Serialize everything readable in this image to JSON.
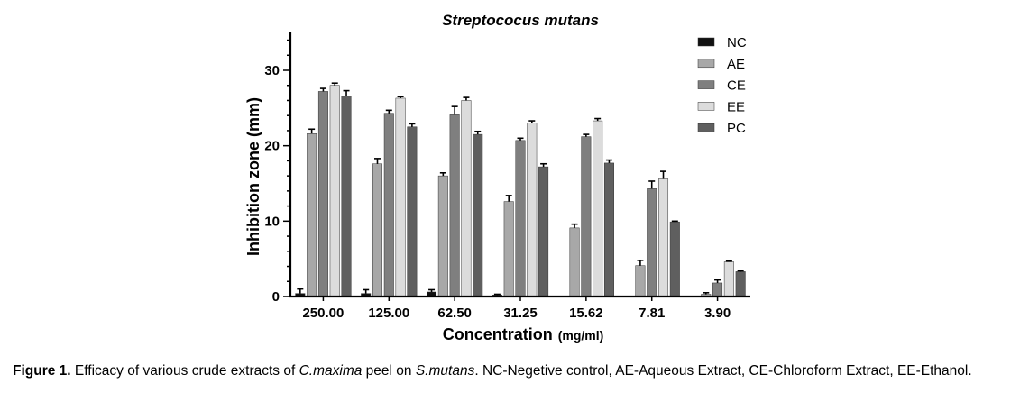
{
  "chart_data": {
    "type": "bar",
    "title": "Streptococus mutans",
    "xlabel": "Concentration",
    "xlabel_unit": "(mg/ml)",
    "ylabel": "Inhibition zone (mm)",
    "ylim": [
      0,
      35
    ],
    "yticks": [
      0,
      10,
      20,
      30
    ],
    "categories": [
      "250.00",
      "125.00",
      "62.50",
      "31.25",
      "15.62",
      "7.81",
      "3.90"
    ],
    "legend_position": "top-right",
    "series": [
      {
        "name": "NC",
        "color": "#111111",
        "values": [
          0.4,
          0.4,
          0.6,
          0.2,
          0.0,
          0.0,
          0.0
        ],
        "errors": [
          0.6,
          0.5,
          0.3,
          0.1,
          0,
          0,
          0
        ]
      },
      {
        "name": "AE",
        "color": "#a8a8a8",
        "values": [
          21.6,
          17.6,
          16.0,
          12.6,
          9.1,
          4.1,
          0.3
        ],
        "errors": [
          0.6,
          0.7,
          0.4,
          0.8,
          0.5,
          0.7,
          0.2
        ]
      },
      {
        "name": "CE",
        "color": "#7f7f7f",
        "values": [
          27.2,
          24.3,
          24.1,
          20.7,
          21.2,
          14.3,
          1.8
        ],
        "errors": [
          0.4,
          0.4,
          1.1,
          0.3,
          0.3,
          1.0,
          0.4
        ]
      },
      {
        "name": "EE",
        "color": "#dcdcdc",
        "values": [
          28.0,
          26.3,
          26.0,
          23.0,
          23.3,
          15.6,
          4.6
        ],
        "errors": [
          0.3,
          0.2,
          0.4,
          0.3,
          0.3,
          1.0,
          0.1
        ]
      },
      {
        "name": "PC",
        "color": "#5f5f5f",
        "values": [
          26.6,
          22.5,
          21.5,
          17.2,
          17.7,
          9.9,
          3.3
        ],
        "errors": [
          0.7,
          0.4,
          0.4,
          0.4,
          0.4,
          0.1,
          0.1
        ]
      }
    ]
  },
  "caption": {
    "label": "Figure 1.",
    "text_1": " Efficacy of various crude extracts of ",
    "species_1": "C.maxima",
    "text_2": " peel on ",
    "species_2": "S.mutans",
    "text_3": ". NC-Negetive control, AE-Aqueous Extract, CE-Chloroform Extract, EE-Ethanol."
  }
}
